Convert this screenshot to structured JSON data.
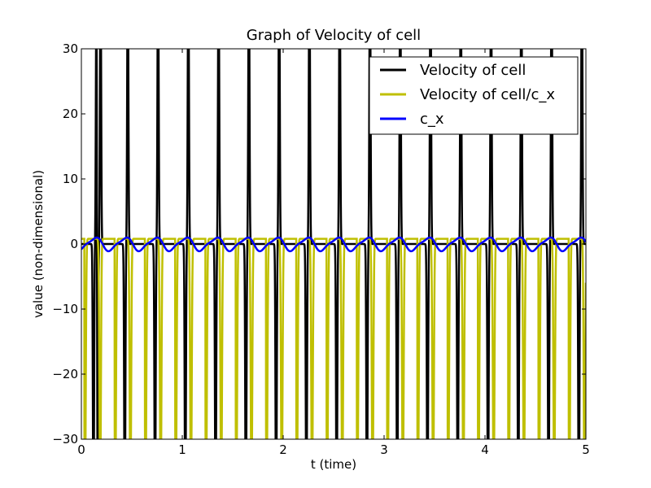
{
  "chart_data": {
    "type": "line",
    "title": "Graph of Velocity of cell",
    "xlabel": "t (time)",
    "ylabel": "value (non-dimensional)",
    "xlim": [
      0,
      5
    ],
    "ylim": [
      -30,
      30
    ],
    "xticks": [
      0,
      1,
      2,
      3,
      4,
      5
    ],
    "yticks": [
      -30,
      -20,
      -10,
      0,
      10,
      20,
      30
    ],
    "ytick_labels": [
      "−30",
      "−20",
      "−10",
      "0",
      "10",
      "20",
      "30"
    ],
    "grid": false,
    "legend_position": "top-right",
    "period": 0.3,
    "spike_times": [
      0.15,
      0.19,
      0.46,
      0.76,
      1.06,
      1.36,
      1.66,
      1.96,
      2.26,
      2.56,
      2.86,
      3.16,
      3.46,
      3.76,
      4.06,
      4.36,
      4.66,
      4.96
    ],
    "series": [
      {
        "name": "Velocity of cell",
        "color": "#000000",
        "description": "sharp spikes beyond +30 and dips below -30 once per period"
      },
      {
        "name": "Velocity of cell/c_x",
        "color": "#bfbf00",
        "description": "oscillates near 0 to 1 with deep dips below -30 twice per period"
      },
      {
        "name": "c_x",
        "color": "#0000ff",
        "amplitude": 1.2,
        "description": "smooth oscillation between about -1.2 and 1.2"
      }
    ]
  }
}
